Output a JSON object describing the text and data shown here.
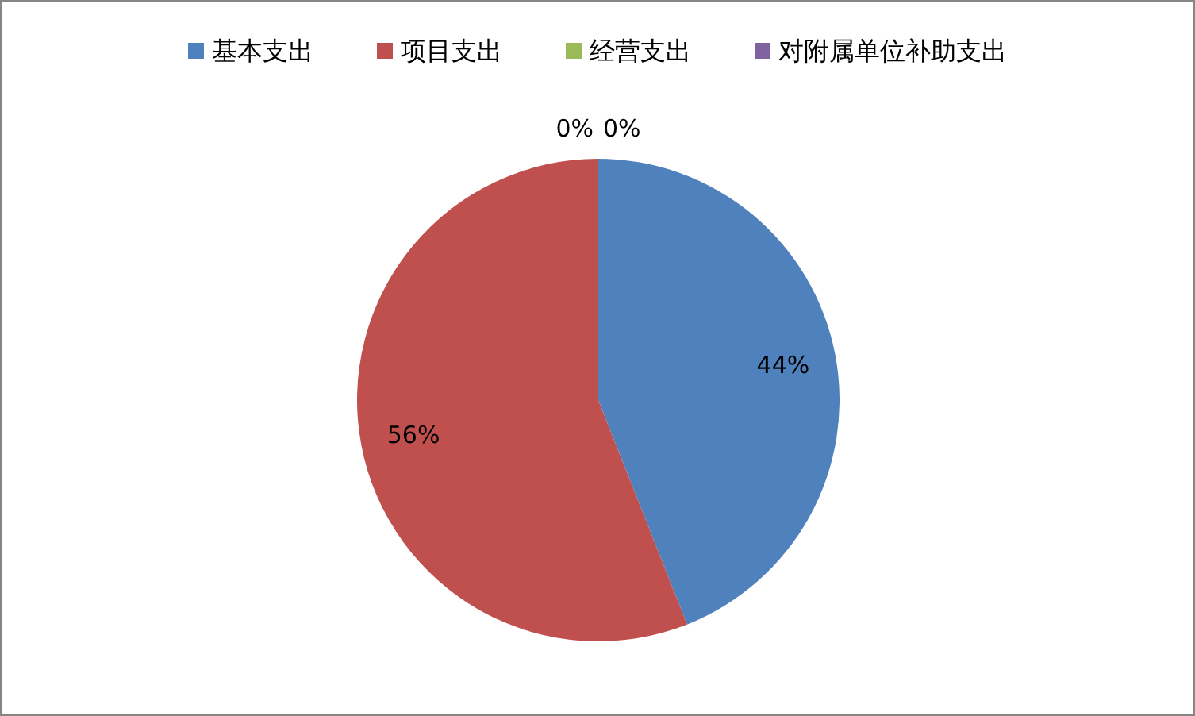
{
  "chart_data": {
    "type": "pie",
    "categories": [
      "基本支出",
      "项目支出",
      "经营支出",
      "对附属单位补助支出"
    ],
    "values": [
      44,
      56,
      0,
      0
    ],
    "colors": [
      "#4f81bd",
      "#c0504d",
      "#9bbb59",
      "#8064a2"
    ],
    "value_labels": [
      "44%",
      "56%",
      "0%",
      "0%"
    ],
    "legend": "top"
  }
}
